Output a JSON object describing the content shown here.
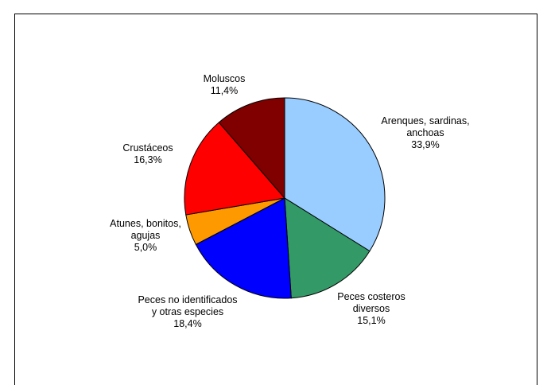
{
  "chart_data": {
    "type": "pie",
    "start_angle_deg": 90,
    "direction": "clockwise",
    "slices": [
      {
        "label_lines": [
          "Arenques, sardinas,",
          "anchoas"
        ],
        "percent_label": "33,9%",
        "value": 33.9,
        "color": "#99ccff"
      },
      {
        "label_lines": [
          "Peces costeros",
          "diversos"
        ],
        "percent_label": "15,1%",
        "value": 15.1,
        "color": "#339966"
      },
      {
        "label_lines": [
          "Peces no identificados",
          "y otras especies"
        ],
        "percent_label": "18,4%",
        "value": 18.4,
        "color": "#0000ff"
      },
      {
        "label_lines": [
          "Atunes, bonitos,",
          "agujas"
        ],
        "percent_label": "5,0%",
        "value": 5.0,
        "color": "#ff9900"
      },
      {
        "label_lines": [
          "Crustáceos"
        ],
        "percent_label": "16,3%",
        "value": 16.3,
        "color": "#ff0000"
      },
      {
        "label_lines": [
          "Moluscos"
        ],
        "percent_label": "11,4%",
        "value": 11.4,
        "color": "#800000"
      }
    ],
    "slice_stroke": "#000000",
    "frame_color": "#000000"
  }
}
